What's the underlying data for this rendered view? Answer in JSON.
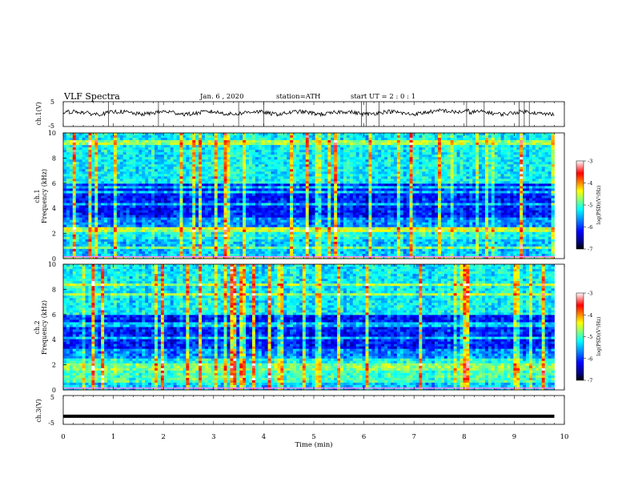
{
  "header": {
    "title": "VLF Spectra",
    "date": "Jan. 6 , 2020",
    "station": "station=ATH",
    "start": "start UT = 2 : 0 : 1"
  },
  "chart_data": [
    {
      "type": "line",
      "name": "waveform-ch1",
      "ylabel": "ch.1(V)",
      "ylim": [
        -5,
        5
      ],
      "yticks": [
        "5",
        "-5"
      ],
      "xlim": [
        0,
        10
      ],
      "baseline": 0.5,
      "spikes_min": [
        0.9,
        1.9,
        3.5,
        4.0,
        5.95,
        6.05,
        6.3,
        8.05,
        8.4,
        9.1,
        9.2,
        9.3
      ]
    },
    {
      "type": "heatmap",
      "name": "spectrogram-ch1",
      "ylabel": "ch.1\nFrequency (kHz)",
      "ylim": [
        0,
        10
      ],
      "yticks": [
        "0",
        "2",
        "4",
        "6",
        "8",
        "10"
      ],
      "xlim": [
        0,
        9.8
      ],
      "colorbar": {
        "label": "log(PSD)(V²/Hz)",
        "ticks": [
          "-3",
          "-4",
          "-5",
          "-6",
          "-7"
        ],
        "range": [
          -7,
          -3
        ]
      }
    },
    {
      "type": "heatmap",
      "name": "spectrogram-ch2",
      "ylabel": "ch.2\nFrequency (kHz)",
      "ylim": [
        0,
        10
      ],
      "yticks": [
        "0",
        "2",
        "4",
        "6",
        "8",
        "10"
      ],
      "xlim": [
        0,
        9.8
      ],
      "colorbar": {
        "label": "log(PSD)(V²/Hz)",
        "ticks": [
          "-3",
          "-4",
          "-5",
          "-6",
          "-7"
        ],
        "range": [
          -7,
          -3
        ]
      }
    },
    {
      "type": "line",
      "name": "waveform-ch3",
      "ylabel": "ch.3(V)",
      "ylim": [
        -5,
        5
      ],
      "yticks": [
        "5",
        "-5"
      ],
      "xlim": [
        0,
        10
      ],
      "baseline": -2.2
    }
  ],
  "xaxis": {
    "label": "Time (min)",
    "ticks": [
      "0",
      "1",
      "2",
      "3",
      "4",
      "5",
      "6",
      "7",
      "8",
      "9",
      "10"
    ],
    "range": [
      0,
      10
    ]
  },
  "colors": {
    "colormap": [
      "#000000",
      "#00007f",
      "#0000ff",
      "#007fff",
      "#00ffff",
      "#7fff7f",
      "#ffff00",
      "#ff7f00",
      "#ff0000",
      "#ffffff"
    ]
  }
}
